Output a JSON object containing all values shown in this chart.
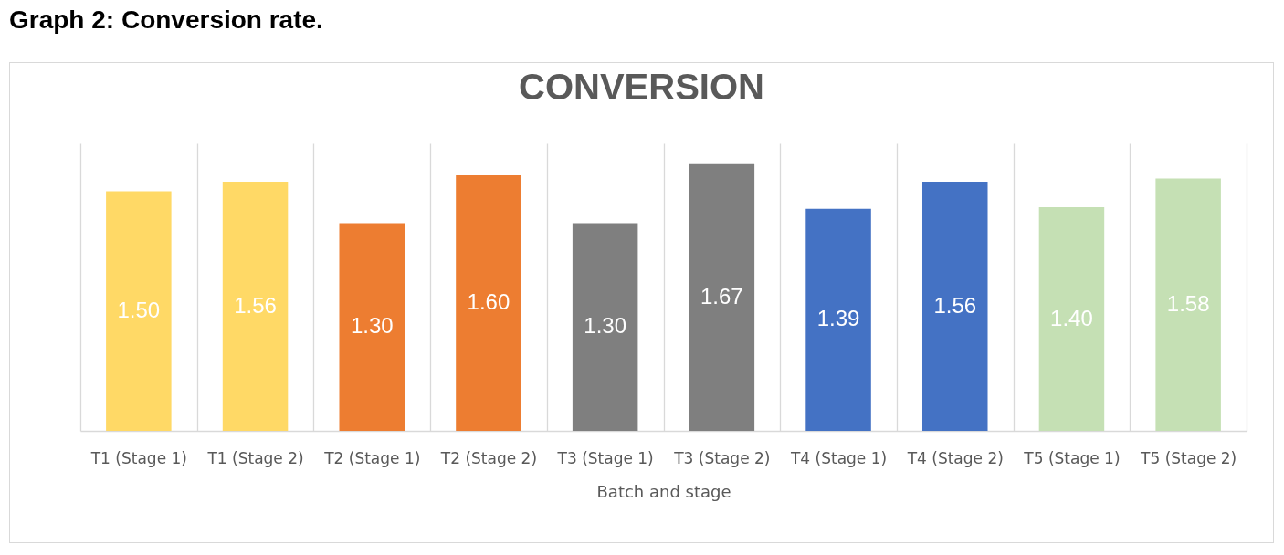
{
  "chart_data": {
    "type": "bar",
    "title": "CONVERSION",
    "xlabel": "Batch and stage",
    "annotations": [
      "Graph 2: Conversion rate."
    ],
    "categories": [
      "T1 (Stage 1)",
      "T1 (Stage 2)",
      "T2 (Stage 1)",
      "T2 (Stage 2)",
      "T3 (Stage 1)",
      "T3 (Stage 2)",
      "T4 (Stage 1)",
      "T4 (Stage 2)",
      "T5 (Stage 1)",
      "T5 (Stage 2)"
    ],
    "values": [
      1.5,
      1.56,
      1.3,
      1.6,
      1.3,
      1.67,
      1.39,
      1.56,
      1.4,
      1.58
    ],
    "colors": [
      "#ffd966",
      "#ffd966",
      "#ed7d31",
      "#ed7d31",
      "#7f7f7f",
      "#7f7f7f",
      "#4472c4",
      "#4472c4",
      "#c5e0b4",
      "#c5e0b4"
    ],
    "value_labels": [
      "1.50",
      "1.56",
      "1.30",
      "1.60",
      "1.30",
      "1.67",
      "1.39",
      "1.56",
      "1.40",
      "1.58"
    ],
    "ylim": [
      0,
      1.8
    ],
    "grid": "x",
    "tick_labels": "x"
  }
}
